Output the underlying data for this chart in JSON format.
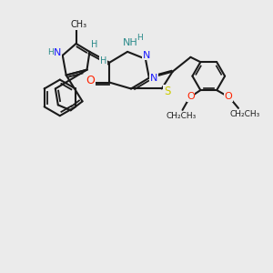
{
  "bg_color": "#ebebeb",
  "bond_color": "#1a1a1a",
  "N_color": "#1a1aff",
  "O_color": "#ff2200",
  "S_color": "#cccc00",
  "NH_color": "#2a8a8a",
  "figsize": [
    3.0,
    3.0
  ],
  "dpi": 100,
  "xlim": [
    0,
    300
  ],
  "ylim": [
    0,
    300
  ]
}
